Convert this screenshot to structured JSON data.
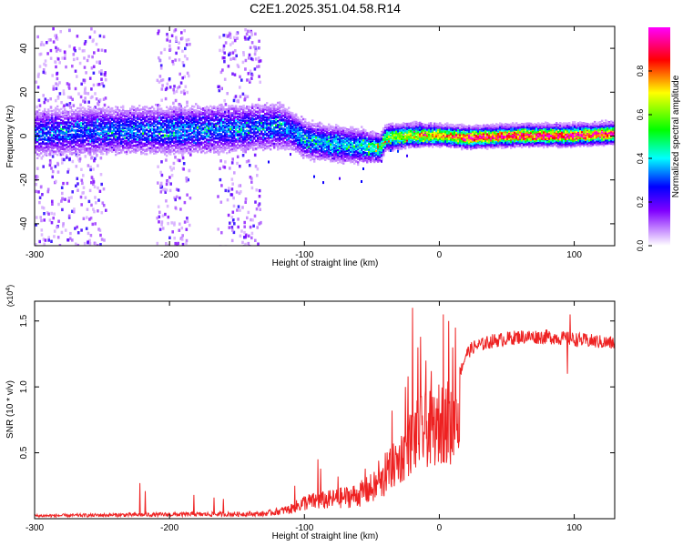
{
  "title": "C2E1.2025.351.04.58.R14",
  "chart_data": [
    {
      "type": "heatmap",
      "xlabel": "Height of straight line (km)",
      "ylabel": "Frequency (Hz)",
      "xlim": [
        -300,
        130
      ],
      "ylim": [
        -50,
        50
      ],
      "xticks": [
        -300,
        -200,
        -100,
        0,
        100
      ],
      "yticks": [
        -40,
        -20,
        0,
        20,
        40
      ],
      "colorbar": {
        "label": "Normalized spectral amplitude",
        "range": [
          0,
          1
        ],
        "ticks": [
          0.0,
          0.2,
          0.4,
          0.6,
          0.8
        ],
        "colors": [
          "#ffffff",
          "#8000ff",
          "#0000ff",
          "#00ffff",
          "#00ff00",
          "#ffff00",
          "#ff0000",
          "#ff00ff"
        ]
      },
      "band_center_hz": [
        [
          -300,
          2
        ],
        [
          -250,
          3
        ],
        [
          -200,
          3
        ],
        [
          -150,
          4
        ],
        [
          -120,
          5
        ],
        [
          -110,
          3
        ],
        [
          -100,
          -1
        ],
        [
          -80,
          -3
        ],
        [
          -60,
          -4
        ],
        [
          -45,
          -5
        ],
        [
          -40,
          0
        ],
        [
          -20,
          1
        ],
        [
          0,
          1
        ],
        [
          20,
          0
        ],
        [
          60,
          1
        ],
        [
          100,
          1
        ],
        [
          130,
          2
        ]
      ],
      "band_halfwidth_hz": [
        [
          -300,
          10
        ],
        [
          -120,
          10
        ],
        [
          -110,
          8
        ],
        [
          -60,
          7
        ],
        [
          -40,
          5
        ],
        [
          0,
          4
        ],
        [
          130,
          4
        ]
      ],
      "band_peak_amplitude": [
        [
          -300,
          0.28
        ],
        [
          -200,
          0.32
        ],
        [
          -120,
          0.3
        ],
        [
          -100,
          0.36
        ],
        [
          -60,
          0.38
        ],
        [
          -40,
          0.55
        ],
        [
          0,
          0.75
        ],
        [
          20,
          0.9
        ],
        [
          130,
          0.9
        ]
      ],
      "noise_columns_km": [
        [
          -300,
          -248
        ],
        [
          -210,
          -185
        ],
        [
          -165,
          -133
        ]
      ],
      "noise_amplitude_range": [
        0.05,
        0.25
      ]
    },
    {
      "type": "line",
      "xlabel": "Height of straight line (km)",
      "ylabel": "SNR (10 * v/v)",
      "y_multiplier": "(x10^4)",
      "xlim": [
        -300,
        130
      ],
      "ylim": [
        0,
        1.65
      ],
      "xticks": [
        -300,
        -200,
        -100,
        0,
        100
      ],
      "yticks": [
        0.5,
        1.0,
        1.5
      ],
      "series": [
        {
          "color": "#ee2222",
          "envelope": [
            [
              -300,
              0.03
            ],
            [
              -230,
              0.04
            ],
            [
              -130,
              0.05
            ],
            [
              -110,
              0.1
            ],
            [
              -100,
              0.17
            ],
            [
              -80,
              0.2
            ],
            [
              -60,
              0.25
            ],
            [
              -45,
              0.35
            ],
            [
              -38,
              0.45
            ],
            [
              -30,
              0.55
            ],
            [
              -25,
              0.65
            ],
            [
              -20,
              0.75
            ],
            [
              -15,
              0.8
            ],
            [
              -10,
              0.85
            ],
            [
              -5,
              0.85
            ],
            [
              0,
              0.9
            ],
            [
              5,
              0.95
            ],
            [
              10,
              0.82
            ],
            [
              15,
              1.1
            ],
            [
              20,
              1.25
            ],
            [
              25,
              1.3
            ],
            [
              40,
              1.35
            ],
            [
              60,
              1.38
            ],
            [
              80,
              1.38
            ],
            [
              100,
              1.36
            ],
            [
              130,
              1.33
            ]
          ],
          "spikes": [
            [
              -222,
              0.27
            ],
            [
              -218,
              0.21
            ],
            [
              -182,
              0.18
            ],
            [
              -167,
              0.16
            ],
            [
              -160,
              0.15
            ],
            [
              -107,
              0.25
            ],
            [
              -90,
              0.45
            ],
            [
              -88,
              0.38
            ],
            [
              -75,
              0.32
            ],
            [
              -55,
              0.38
            ],
            [
              -45,
              0.44
            ],
            [
              -40,
              0.5
            ],
            [
              -35,
              0.82
            ],
            [
              -25,
              1.0
            ],
            [
              -23,
              1.08
            ],
            [
              -20,
              1.6
            ],
            [
              -16,
              1.3
            ],
            [
              -14,
              1.38
            ],
            [
              -10,
              1.2
            ],
            [
              -6,
              1.12
            ],
            [
              -2,
              1.1
            ],
            [
              3,
              1.55
            ],
            [
              7,
              1.5
            ],
            [
              10,
              1.3
            ],
            [
              12,
              1.45
            ],
            [
              97,
              1.55
            ],
            [
              95,
              1.42
            ]
          ],
          "dips": [
            [
              -2,
              0.6
            ],
            [
              8,
              0.5
            ],
            [
              95,
              1.1
            ]
          ]
        }
      ]
    }
  ]
}
